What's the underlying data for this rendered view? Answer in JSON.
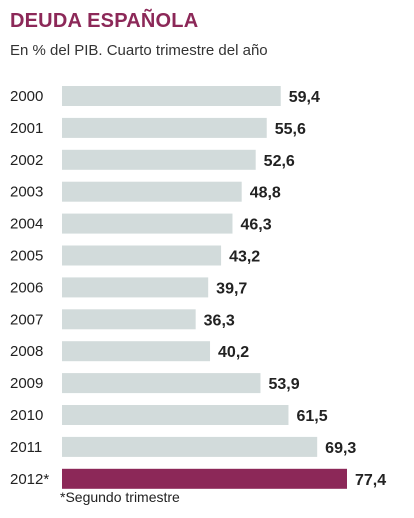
{
  "chart_data": {
    "type": "bar",
    "orientation": "horizontal",
    "title": "DEUDA ESPAÑOLA",
    "subtitle": "En % del PIB. Cuarto trimestre del año",
    "note": "*Segundo trimestre",
    "categories": [
      "2000",
      "2001",
      "2002",
      "2003",
      "2004",
      "2005",
      "2006",
      "2007",
      "2008",
      "2009",
      "2010",
      "2011",
      "2012*"
    ],
    "values": [
      59.4,
      55.6,
      52.6,
      48.8,
      46.3,
      43.2,
      39.7,
      36.3,
      40.2,
      53.9,
      61.5,
      69.3,
      77.4
    ],
    "value_labels": [
      "59,4",
      "55,6",
      "52,6",
      "48,8",
      "46,3",
      "43,2",
      "39,7",
      "36,3",
      "40,2",
      "53,9",
      "61,5",
      "69,3",
      "77,4"
    ],
    "highlight_index": 12,
    "xlim": [
      0,
      77.4
    ],
    "grid": false,
    "colors": {
      "bar": "#d2dbdb",
      "highlight": "#8c2858",
      "title": "#8c2858"
    }
  }
}
